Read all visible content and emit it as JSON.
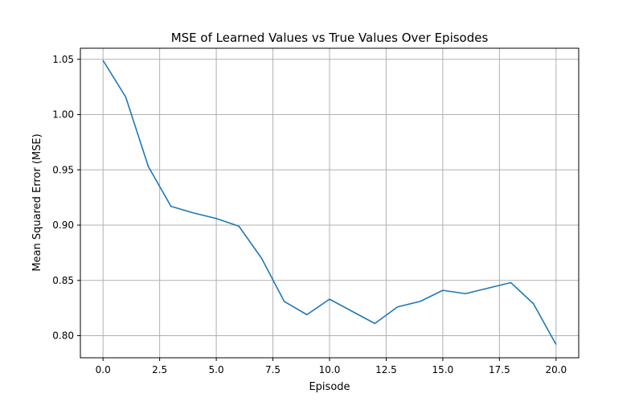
{
  "chart_data": {
    "type": "line",
    "title": "MSE of Learned Values vs True Values Over Episodes",
    "xlabel": "Episode",
    "ylabel": "Mean Squared Error (MSE)",
    "xlim": [
      -1,
      21
    ],
    "ylim": [
      0.78,
      1.06
    ],
    "grid": true,
    "x_ticks": [
      0.0,
      2.5,
      5.0,
      7.5,
      10.0,
      12.5,
      15.0,
      17.5,
      20.0
    ],
    "x_tick_labels": [
      "0.0",
      "2.5",
      "5.0",
      "7.5",
      "10.0",
      "12.5",
      "15.0",
      "17.5",
      "20.0"
    ],
    "y_ticks": [
      0.8,
      0.85,
      0.9,
      0.95,
      1.0,
      1.05
    ],
    "y_tick_labels": [
      "0.80",
      "0.85",
      "0.90",
      "0.95",
      "1.00",
      "1.05"
    ],
    "series": [
      {
        "color": "#1f77b4",
        "x": [
          0,
          1,
          2,
          3,
          4,
          5,
          6,
          7,
          8,
          9,
          10,
          11,
          12,
          13,
          14,
          15,
          16,
          17,
          18,
          19,
          20
        ],
        "y": [
          1.049,
          1.016,
          0.953,
          0.917,
          0.911,
          0.906,
          0.899,
          0.87,
          0.831,
          0.819,
          0.833,
          0.822,
          0.811,
          0.826,
          0.831,
          0.841,
          0.838,
          0.843,
          0.848,
          0.829,
          0.792
        ]
      }
    ]
  }
}
